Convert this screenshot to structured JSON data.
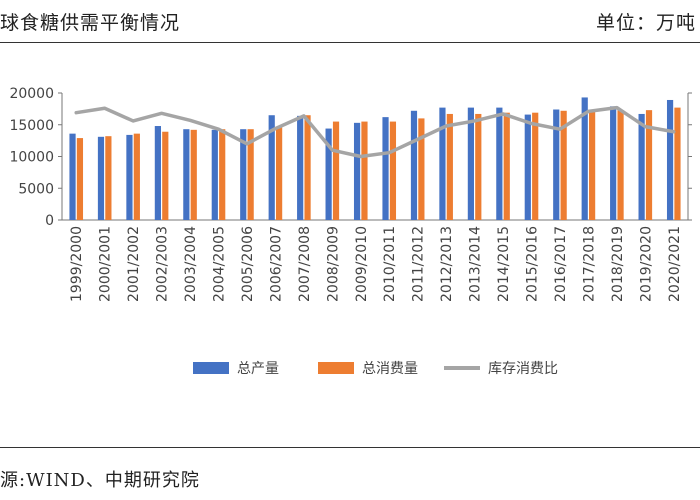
{
  "header": {
    "title": "球食糖供需平衡情况",
    "unit": "单位：万吨"
  },
  "footer": {
    "source": "源:WIND、中期研究院"
  },
  "colors": {
    "production": "#4472C4",
    "consumption": "#ED7D31",
    "ratio": "#A5A5A5"
  },
  "chart_data": {
    "type": "bar",
    "categories": [
      "1999/2000",
      "2000/2001",
      "2001/2002",
      "2002/2003",
      "2003/2004",
      "2004/2005",
      "2005/2006",
      "2006/2007",
      "2007/2008",
      "2008/2009",
      "2009/2010",
      "2010/2011",
      "2011/2012",
      "2012/2013",
      "2013/2014",
      "2014/2015",
      "2015/2016",
      "2016/2017",
      "2017/2018",
      "2018/2019",
      "2019/2020",
      "2020/2021"
    ],
    "series": [
      {
        "name": "总产量",
        "kind": "bar",
        "values": [
          13600,
          13100,
          13400,
          14800,
          14300,
          14200,
          14300,
          16500,
          16400,
          14400,
          15300,
          16200,
          17200,
          17700,
          17700,
          17700,
          16600,
          17400,
          19300,
          17900,
          16700,
          18900
        ]
      },
      {
        "name": "总消费量",
        "kind": "bar",
        "values": [
          12900,
          13200,
          13600,
          13900,
          14200,
          14300,
          14300,
          14700,
          16500,
          15500,
          15500,
          15500,
          16000,
          16700,
          16700,
          16900,
          16900,
          17200,
          17300,
          17300,
          17300,
          17700
        ]
      },
      {
        "name": "库存消费比",
        "kind": "line",
        "values": [
          16900,
          17600,
          15600,
          16800,
          15700,
          14300,
          12000,
          14400,
          16400,
          11000,
          10000,
          10600,
          12700,
          14800,
          15600,
          16700,
          15200,
          14300,
          17100,
          17700,
          14700,
          13900
        ]
      }
    ],
    "yticks": [
      0,
      5000,
      10000,
      15000,
      20000
    ],
    "ytick_labels": [
      "0",
      "5000",
      "10000",
      "15000",
      "20000"
    ],
    "ylim": [
      0,
      20000
    ],
    "legend": "bottom",
    "grid": false
  }
}
